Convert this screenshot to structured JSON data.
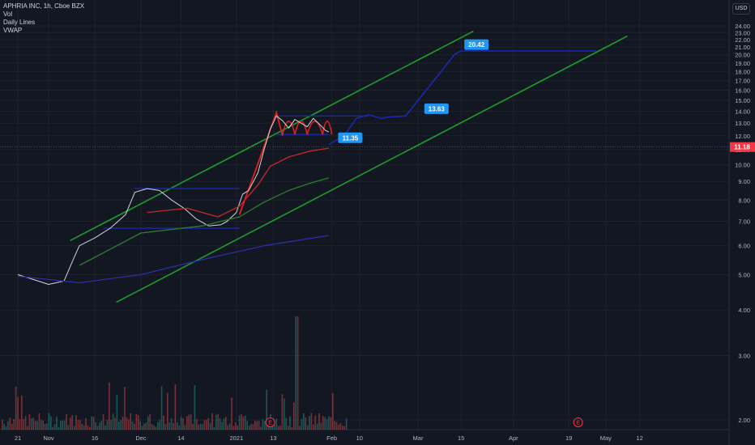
{
  "legend": {
    "symbol": "APHRIA INC, 1h, Cboe BZX",
    "vol": "Vol",
    "daily_lines": "Daily Lines",
    "vwap": "VWAP"
  },
  "currency": "USD",
  "chart_data": {
    "type": "line",
    "title": "APHRIA INC, 1h, Cboe BZX",
    "y_axis": {
      "scale": "log",
      "ticks": [
        "24.00",
        "23.00",
        "22.00",
        "21.00",
        "20.00",
        "19.00",
        "18.00",
        "17.00",
        "16.00",
        "15.00",
        "14.00",
        "13.00",
        "12.00",
        "11.00",
        "10.00",
        "9.00",
        "8.00",
        "7.00",
        "6.00",
        "5.00",
        "4.00",
        "3.00",
        "2.00"
      ]
    },
    "x_axis": {
      "ticks": [
        {
          "label": "21",
          "day": -10
        },
        {
          "label": "Nov",
          "day": 0
        },
        {
          "label": "16",
          "day": 15
        },
        {
          "label": "Dec",
          "day": 30
        },
        {
          "label": "14",
          "day": 43
        },
        {
          "label": "2021",
          "day": 61
        },
        {
          "label": "13",
          "day": 73
        },
        {
          "label": "Feb",
          "day": 92
        },
        {
          "label": "10",
          "day": 101
        },
        {
          "label": "Mar",
          "day": 120
        },
        {
          "label": "15",
          "day": 134
        },
        {
          "label": "Apr",
          "day": 151
        },
        {
          "label": "19",
          "day": 169
        },
        {
          "label": "May",
          "day": 181
        },
        {
          "label": "12",
          "day": 192
        }
      ]
    },
    "last_price": "11.18",
    "annotations": [
      "20.42",
      "13.63",
      "11.35"
    ],
    "series": [
      {
        "values": [
          [
            -10,
            5.0
          ],
          [
            -5,
            4.85
          ],
          [
            0,
            4.7
          ],
          [
            5,
            4.8
          ],
          [
            8,
            5.5
          ],
          [
            10,
            6.0
          ],
          [
            15,
            6.3
          ],
          [
            20,
            6.7
          ],
          [
            25,
            7.3
          ],
          [
            28,
            8.4
          ],
          [
            32,
            8.6
          ],
          [
            36,
            8.5
          ],
          [
            40,
            8.0
          ],
          [
            44,
            7.6
          ],
          [
            48,
            7.1
          ],
          [
            52,
            6.8
          ],
          [
            56,
            6.85
          ],
          [
            58,
            7.0
          ],
          [
            61,
            7.4
          ],
          [
            63,
            8.3
          ],
          [
            65,
            8.5
          ],
          [
            68,
            9.5
          ],
          [
            70,
            11.0
          ],
          [
            72,
            12.5
          ],
          [
            74,
            13.6
          ],
          [
            76,
            13.2
          ],
          [
            78,
            12.6
          ],
          [
            80,
            13.3
          ],
          [
            82,
            13.0
          ],
          [
            84,
            12.7
          ],
          [
            86,
            13.4
          ],
          [
            88,
            12.9
          ],
          [
            90,
            12.4
          ],
          [
            91,
            12.3
          ]
        ]
      },
      {
        "values": [
          [
            -10,
            4.95
          ],
          [
            10,
            4.75
          ],
          [
            30,
            5.0
          ],
          [
            50,
            5.5
          ],
          [
            70,
            6.0
          ],
          [
            91,
            6.4
          ]
        ]
      },
      {
        "values": [
          [
            32,
            7.4
          ],
          [
            45,
            7.6
          ],
          [
            55,
            7.2
          ],
          [
            62,
            7.7
          ],
          [
            68,
            8.8
          ],
          [
            72,
            9.9
          ],
          [
            78,
            10.5
          ],
          [
            85,
            10.9
          ],
          [
            91,
            11.1
          ]
        ]
      },
      {
        "values": [
          [
            10,
            5.3
          ],
          [
            30,
            6.5
          ],
          [
            50,
            6.8
          ],
          [
            62,
            7.2
          ],
          [
            70,
            7.9
          ],
          [
            78,
            8.5
          ],
          [
            85,
            8.9
          ],
          [
            91,
            9.2
          ]
        ]
      }
    ],
    "drawings": {
      "channel_upper": [
        [
          7,
          6.2
        ],
        [
          138,
          23.2
        ]
      ],
      "channel_lower": [
        [
          22,
          4.2
        ],
        [
          188,
          22.5
        ]
      ],
      "projection": [
        [
          91,
          11.35
        ],
        [
          96,
          12.0
        ],
        [
          100,
          13.4
        ],
        [
          104,
          13.7
        ],
        [
          108,
          13.4
        ],
        [
          110,
          13.5
        ],
        [
          116,
          13.6
        ],
        [
          132,
          20.1
        ],
        [
          134,
          20.5
        ],
        [
          178,
          20.5
        ]
      ]
    }
  }
}
